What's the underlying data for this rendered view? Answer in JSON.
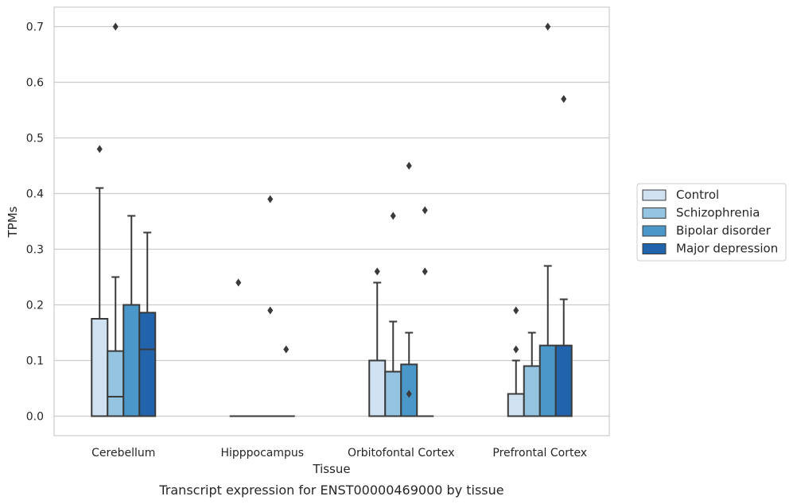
{
  "chart_data": {
    "type": "box",
    "xlabel": "Tissue",
    "ylabel": "TPMs",
    "caption": "Transcript expression for ENST00000469000 by tissue",
    "ylim": [
      -0.035,
      0.735
    ],
    "yticks": [
      0.0,
      0.1,
      0.2,
      0.3,
      0.4,
      0.5,
      0.6,
      0.7
    ],
    "ytick_labels": [
      "0.0",
      "0.1",
      "0.2",
      "0.3",
      "0.4",
      "0.5",
      "0.6",
      "0.7"
    ],
    "categories": [
      "Cerebellum",
      "Hipppocampus",
      "Orbitofontal Cortex",
      "Prefrontal Cortex"
    ],
    "grid": "horizontal",
    "legend_position": "right",
    "series": [
      {
        "name": "Control",
        "color": "#d0e1f2",
        "boxes": [
          {
            "q1": 0.0,
            "median": 0.0,
            "q3": 0.175,
            "whisker_low": 0.0,
            "whisker_high": 0.41,
            "outliers": [
              0.48
            ]
          },
          {
            "q1": 0.0,
            "median": 0.0,
            "q3": 0.0,
            "whisker_low": 0.0,
            "whisker_high": 0.0,
            "outliers": [
              0.24
            ]
          },
          {
            "q1": 0.0,
            "median": 0.0,
            "q3": 0.1,
            "whisker_low": 0.0,
            "whisker_high": 0.24,
            "outliers": [
              0.26
            ]
          },
          {
            "q1": 0.0,
            "median": 0.0,
            "q3": 0.04,
            "whisker_low": 0.0,
            "whisker_high": 0.1,
            "outliers": [
              0.12,
              0.19
            ]
          }
        ]
      },
      {
        "name": "Schizophrenia",
        "color": "#94c4df",
        "boxes": [
          {
            "q1": 0.0,
            "median": 0.035,
            "q3": 0.117,
            "whisker_low": 0.0,
            "whisker_high": 0.25,
            "outliers": [
              0.7
            ]
          },
          {
            "q1": 0.0,
            "median": 0.0,
            "q3": 0.0,
            "whisker_low": 0.0,
            "whisker_high": 0.0,
            "outliers": []
          },
          {
            "q1": 0.0,
            "median": 0.0,
            "q3": 0.08,
            "whisker_low": 0.0,
            "whisker_high": 0.17,
            "outliers": [
              0.36
            ]
          },
          {
            "q1": 0.0,
            "median": 0.0,
            "q3": 0.09,
            "whisker_low": 0.0,
            "whisker_high": 0.15,
            "outliers": []
          }
        ]
      },
      {
        "name": "Bipolar disorder",
        "color": "#4a98c9",
        "boxes": [
          {
            "q1": 0.0,
            "median": 0.0,
            "q3": 0.2,
            "whisker_low": 0.0,
            "whisker_high": 0.36,
            "outliers": []
          },
          {
            "q1": 0.0,
            "median": 0.0,
            "q3": 0.0,
            "whisker_low": 0.0,
            "whisker_high": 0.0,
            "outliers": [
              0.19,
              0.39
            ]
          },
          {
            "q1": 0.0,
            "median": 0.0,
            "q3": 0.093,
            "whisker_low": 0.0,
            "whisker_high": 0.15,
            "outliers": [
              0.04,
              0.45
            ]
          },
          {
            "q1": 0.0,
            "median": 0.0,
            "q3": 0.127,
            "whisker_low": 0.0,
            "whisker_high": 0.27,
            "outliers": [
              0.7
            ]
          }
        ]
      },
      {
        "name": "Major depression",
        "color": "#2164ab",
        "boxes": [
          {
            "q1": 0.0,
            "median": 0.12,
            "q3": 0.186,
            "whisker_low": 0.0,
            "whisker_high": 0.33,
            "outliers": []
          },
          {
            "q1": 0.0,
            "median": 0.0,
            "q3": 0.0,
            "whisker_low": 0.0,
            "whisker_high": 0.0,
            "outliers": [
              0.12
            ]
          },
          {
            "q1": 0.0,
            "median": 0.0,
            "q3": 0.0,
            "whisker_low": 0.0,
            "whisker_high": 0.0,
            "outliers": [
              0.26,
              0.37
            ]
          },
          {
            "q1": 0.0,
            "median": 0.0,
            "q3": 0.127,
            "whisker_low": 0.0,
            "whisker_high": 0.21,
            "outliers": [
              0.57
            ]
          }
        ]
      }
    ]
  }
}
